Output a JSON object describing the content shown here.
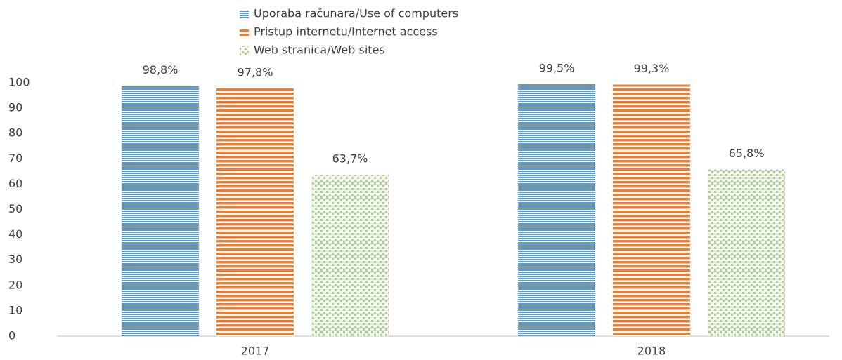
{
  "chart_data": {
    "type": "bar",
    "categories": [
      "2017",
      "2018"
    ],
    "series": [
      {
        "name": "Uporaba računara/Use of computers",
        "color": "#5b9bd5",
        "pattern": "stripes",
        "values": [
          98.8,
          99.5
        ],
        "value_labels": [
          "98,8%",
          "99,5%"
        ]
      },
      {
        "name": "Pristup internetu/Internet access",
        "color": "#ed7d31",
        "pattern": "stripes",
        "values": [
          97.8,
          99.3
        ],
        "value_labels": [
          "97,8%",
          "99,3%"
        ]
      },
      {
        "name": "Web stranica/Web sites",
        "color": "#a9d18e",
        "pattern": "dots",
        "values": [
          63.7,
          65.8
        ],
        "value_labels": [
          "63,7%",
          "65,8%"
        ]
      }
    ],
    "ylim": [
      0,
      100
    ],
    "yticks": [
      0,
      10,
      20,
      30,
      40,
      50,
      60,
      70,
      80,
      90,
      100
    ],
    "grid": false,
    "legend": "top"
  }
}
